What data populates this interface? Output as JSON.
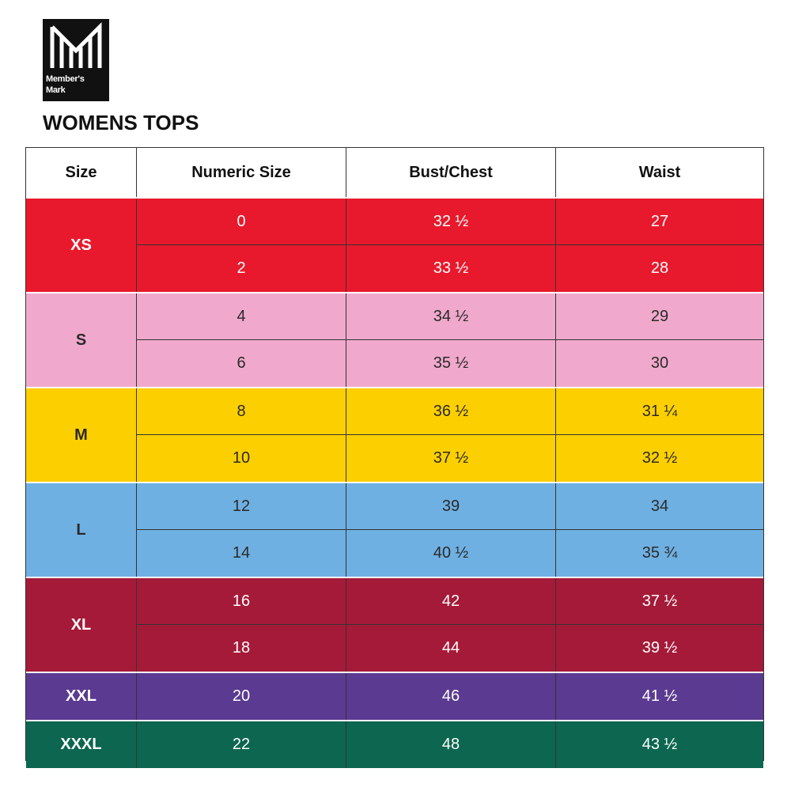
{
  "logo": {
    "line1": "Member's",
    "line2": "Mark"
  },
  "title": "WOMENS TOPS",
  "table": {
    "headers": [
      "Size",
      "Numeric Size",
      "Bust/Chest",
      "Waist"
    ],
    "groups": [
      {
        "size": "XS",
        "color": "#e8192c",
        "text_color": "#ffffff",
        "rows": [
          [
            "0",
            "32 ½",
            "27"
          ],
          [
            "2",
            "33 ½",
            "28"
          ]
        ]
      },
      {
        "size": "S",
        "color": "#f0a9cc",
        "text_color": "#2a2a2a",
        "rows": [
          [
            "4",
            "34 ½",
            "29"
          ],
          [
            "6",
            "35 ½",
            "30"
          ]
        ]
      },
      {
        "size": "M",
        "color": "#fccf00",
        "text_color": "#2a2a2a",
        "rows": [
          [
            "8",
            "36 ½",
            "31 ¼"
          ],
          [
            "10",
            "37 ½",
            "32 ½"
          ]
        ]
      },
      {
        "size": "L",
        "color": "#6fb0e2",
        "text_color": "#2a2a2a",
        "rows": [
          [
            "12",
            "39",
            "34"
          ],
          [
            "14",
            "40 ½",
            "35 ¾"
          ]
        ]
      },
      {
        "size": "XL",
        "color": "#a51a38",
        "text_color": "#ffffff",
        "rows": [
          [
            "16",
            "42",
            "37 ½"
          ],
          [
            "18",
            "44",
            "39 ½"
          ]
        ]
      },
      {
        "size": "XXL",
        "color": "#5b3a91",
        "text_color": "#ffffff",
        "rows": [
          [
            "20",
            "46",
            "41 ½"
          ]
        ]
      },
      {
        "size": "XXXL",
        "color": "#0d6650",
        "text_color": "#ffffff",
        "rows": [
          [
            "22",
            "48",
            "43 ½"
          ]
        ]
      }
    ]
  }
}
